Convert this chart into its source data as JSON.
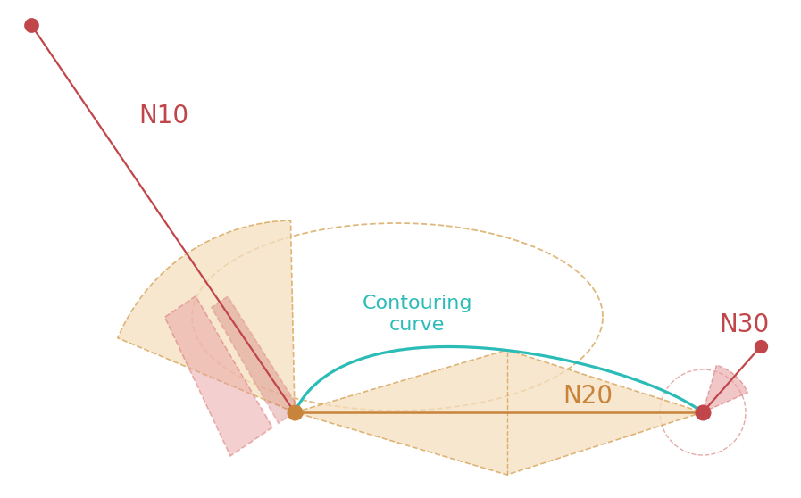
{
  "background_color": "#ffffff",
  "colors": {
    "red_node": "#c0464a",
    "red_line": "#c0464a",
    "red_fill": "#e8a0a2",
    "red_dashed": "#d87070",
    "orange_node": "#c8843a",
    "orange_line": "#c8843a",
    "orange_fill": "#f5e0c0",
    "orange_dashed": "#d4a050",
    "teal_curve": "#2bbcb8",
    "teal_text": "#2bbcb8",
    "label_N10": "#c0464a",
    "label_N20": "#c8843a",
    "label_N30": "#c0464a"
  },
  "figsize": [
    8.97,
    5.58
  ],
  "dpi": 100
}
